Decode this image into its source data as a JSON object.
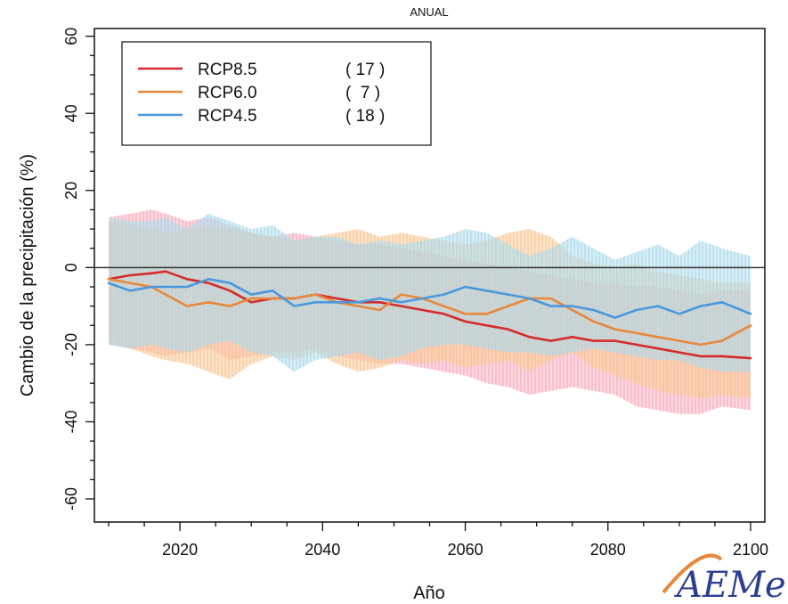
{
  "chart_data": {
    "type": "line",
    "title": "ANUAL",
    "xlabel": "Año",
    "ylabel": "Cambio de la precipitación (%)",
    "xlim": [
      2008,
      2102
    ],
    "ylim": [
      -66,
      62
    ],
    "xticks": [
      2020,
      2040,
      2060,
      2080,
      2100
    ],
    "yticks": [
      -60,
      -40,
      -20,
      0,
      20,
      40,
      60
    ],
    "zero_line": 0,
    "legend_position": "top-left",
    "series": [
      {
        "name": "RCP8.5",
        "count": "( 17 )",
        "color": "#d62a2a",
        "band_color": "#f6a9b9",
        "x": [
          2010,
          2013,
          2016,
          2018,
          2021,
          2024,
          2027,
          2030,
          2033,
          2036,
          2039,
          2042,
          2045,
          2048,
          2051,
          2054,
          2057,
          2060,
          2063,
          2066,
          2069,
          2072,
          2075,
          2078,
          2081,
          2084,
          2087,
          2090,
          2093,
          2096,
          2100
        ],
        "y": [
          -3,
          -2,
          -1.5,
          -1,
          -3,
          -4,
          -6,
          -9,
          -8,
          -8,
          -7,
          -8,
          -9,
          -9,
          -10,
          -11,
          -12,
          -14,
          -15,
          -16,
          -18,
          -19,
          -18,
          -19,
          -19,
          -20,
          -21,
          -22,
          -23,
          -23,
          -23.5
        ],
        "upper": [
          13,
          14,
          15,
          14,
          12,
          13,
          11,
          9,
          8,
          9,
          8,
          7,
          6,
          6,
          5,
          4,
          3,
          2,
          1,
          0,
          -1,
          -2,
          -3,
          -4,
          -4,
          -5,
          -5,
          -6,
          -7,
          -6,
          -6
        ],
        "lower": [
          -20,
          -21,
          -22,
          -23,
          -22,
          -21,
          -24,
          -23,
          -22,
          -22,
          -21,
          -23,
          -24,
          -25,
          -25,
          -26,
          -27,
          -28,
          -30,
          -31,
          -33,
          -32,
          -31,
          -32,
          -33,
          -36,
          -37,
          -38,
          -38,
          -36,
          -37
        ]
      },
      {
        "name": "RCP6.0",
        "count": "(  7 )",
        "color": "#e8873a",
        "band_color": "#f9c48f",
        "x": [
          2010,
          2013,
          2016,
          2018,
          2021,
          2024,
          2027,
          2030,
          2033,
          2036,
          2039,
          2042,
          2045,
          2048,
          2051,
          2054,
          2057,
          2060,
          2063,
          2066,
          2069,
          2072,
          2075,
          2078,
          2081,
          2084,
          2087,
          2090,
          2093,
          2096,
          2100
        ],
        "y": [
          -3,
          -4,
          -5,
          -7,
          -10,
          -9,
          -10,
          -8,
          -8,
          -8,
          -7,
          -9,
          -10,
          -11,
          -7,
          -8,
          -10,
          -12,
          -12,
          -10,
          -8,
          -8,
          -11,
          -14,
          -16,
          -17,
          -18,
          -19,
          -20,
          -19,
          -15
        ],
        "upper": [
          12,
          11,
          10,
          9,
          10,
          11,
          10,
          9,
          8,
          7,
          8,
          9,
          10,
          8,
          9,
          8,
          7,
          6,
          7,
          9,
          10,
          8,
          3,
          1,
          0,
          1,
          -1,
          -2,
          -3,
          -4,
          -4
        ],
        "lower": [
          -19,
          -21,
          -23,
          -24,
          -25,
          -27,
          -29,
          -25,
          -23,
          -24,
          -22,
          -25,
          -27,
          -26,
          -24,
          -25,
          -24,
          -26,
          -25,
          -24,
          -27,
          -24,
          -22,
          -26,
          -28,
          -30,
          -32,
          -33,
          -34,
          -33,
          -34
        ]
      },
      {
        "name": "RCP4.5",
        "count": "( 18 )",
        "color": "#4a98dc",
        "band_color": "#a8d7e9",
        "x": [
          2010,
          2013,
          2016,
          2018,
          2021,
          2024,
          2027,
          2030,
          2033,
          2036,
          2039,
          2042,
          2045,
          2048,
          2051,
          2054,
          2057,
          2060,
          2063,
          2066,
          2069,
          2072,
          2075,
          2078,
          2081,
          2084,
          2087,
          2090,
          2093,
          2096,
          2100
        ],
        "y": [
          -4,
          -6,
          -5,
          -5,
          -5,
          -3,
          -4,
          -7,
          -6,
          -10,
          -9,
          -9,
          -9,
          -8,
          -9,
          -8,
          -7,
          -5,
          -6,
          -7,
          -8,
          -10,
          -10,
          -11,
          -13,
          -11,
          -10,
          -12,
          -10,
          -9,
          -12
        ],
        "upper": [
          13,
          12,
          12,
          13,
          10,
          14,
          12,
          10,
          11,
          7,
          8,
          8,
          6,
          7,
          6,
          7,
          8,
          10,
          9,
          6,
          3,
          5,
          8,
          5,
          2,
          4,
          6,
          3,
          7,
          5,
          3
        ],
        "lower": [
          -20,
          -21,
          -20,
          -21,
          -22,
          -20,
          -19,
          -22,
          -23,
          -27,
          -24,
          -23,
          -22,
          -24,
          -23,
          -21,
          -20,
          -20,
          -21,
          -22,
          -22,
          -23,
          -22,
          -21,
          -22,
          -23,
          -24,
          -24,
          -26,
          -27,
          -27
        ]
      }
    ]
  },
  "logo": {
    "text": "AEMet",
    "color": "#2c3e93",
    "accent": "#e8873a"
  }
}
